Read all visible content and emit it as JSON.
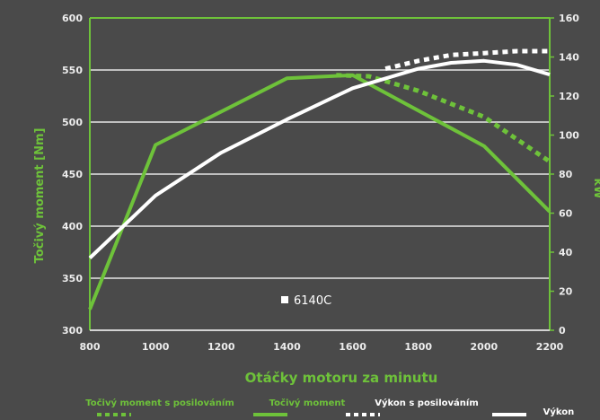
{
  "chart_data": {
    "type": "line",
    "xlabel": "Otáčky motoru za minutu",
    "ylabel_left": "Točivý moment [Nm]",
    "ylabel_right": "kW",
    "x_ticks": [
      "800",
      "1000",
      "1200",
      "1400",
      "1600",
      "1800",
      "2000",
      "2200"
    ],
    "y_left_ticks": [
      "300",
      "350",
      "400",
      "450",
      "500",
      "550",
      "600"
    ],
    "y_right_ticks": [
      "0",
      "20",
      "40",
      "60",
      "80",
      "100",
      "120",
      "140",
      "160"
    ],
    "xlim": [
      800,
      2200
    ],
    "ylim_left": [
      300,
      600
    ],
    "ylim_right": [
      0,
      160
    ],
    "grid": true,
    "annotation": "6140C",
    "series": [
      {
        "name": "Točivý moment s posilováním",
        "axis": "left",
        "style": "dotted",
        "color": "#6ec23a",
        "x": [
          1550,
          1650,
          1800,
          2000,
          2200
        ],
        "values": [
          545,
          544,
          530,
          505,
          462
        ]
      },
      {
        "name": "Točivý moment",
        "axis": "left",
        "style": "solid",
        "color": "#6ec23a",
        "x": [
          800,
          1000,
          1400,
          1600,
          2000,
          2200
        ],
        "values": [
          320,
          478,
          542,
          545,
          477,
          414
        ]
      },
      {
        "name": "Výkon s posilováním",
        "axis": "right",
        "style": "dotted",
        "color": "#ffffff",
        "x": [
          1700,
          1800,
          1900,
          2000,
          2100,
          2200
        ],
        "values": [
          134,
          138,
          141,
          142,
          143,
          143
        ]
      },
      {
        "name": "Výkon",
        "axis": "right",
        "style": "solid",
        "color": "#ffffff",
        "x": [
          800,
          1000,
          1200,
          1400,
          1600,
          1800,
          1900,
          2000,
          2100,
          2200
        ],
        "values": [
          37,
          69,
          91,
          108,
          124,
          134,
          137,
          138,
          136,
          131
        ]
      }
    ],
    "legend": [
      {
        "label": "Točivý moment s posilováním",
        "color": "#6ec23a",
        "style": "dotted"
      },
      {
        "label": "Točivý moment",
        "color": "#6ec23a",
        "style": "solid"
      },
      {
        "label": "Výkon s posilováním",
        "color": "#ffffff",
        "style": "dotted"
      },
      {
        "label": "Výkon",
        "color": "#ffffff",
        "style": "solid"
      }
    ]
  }
}
